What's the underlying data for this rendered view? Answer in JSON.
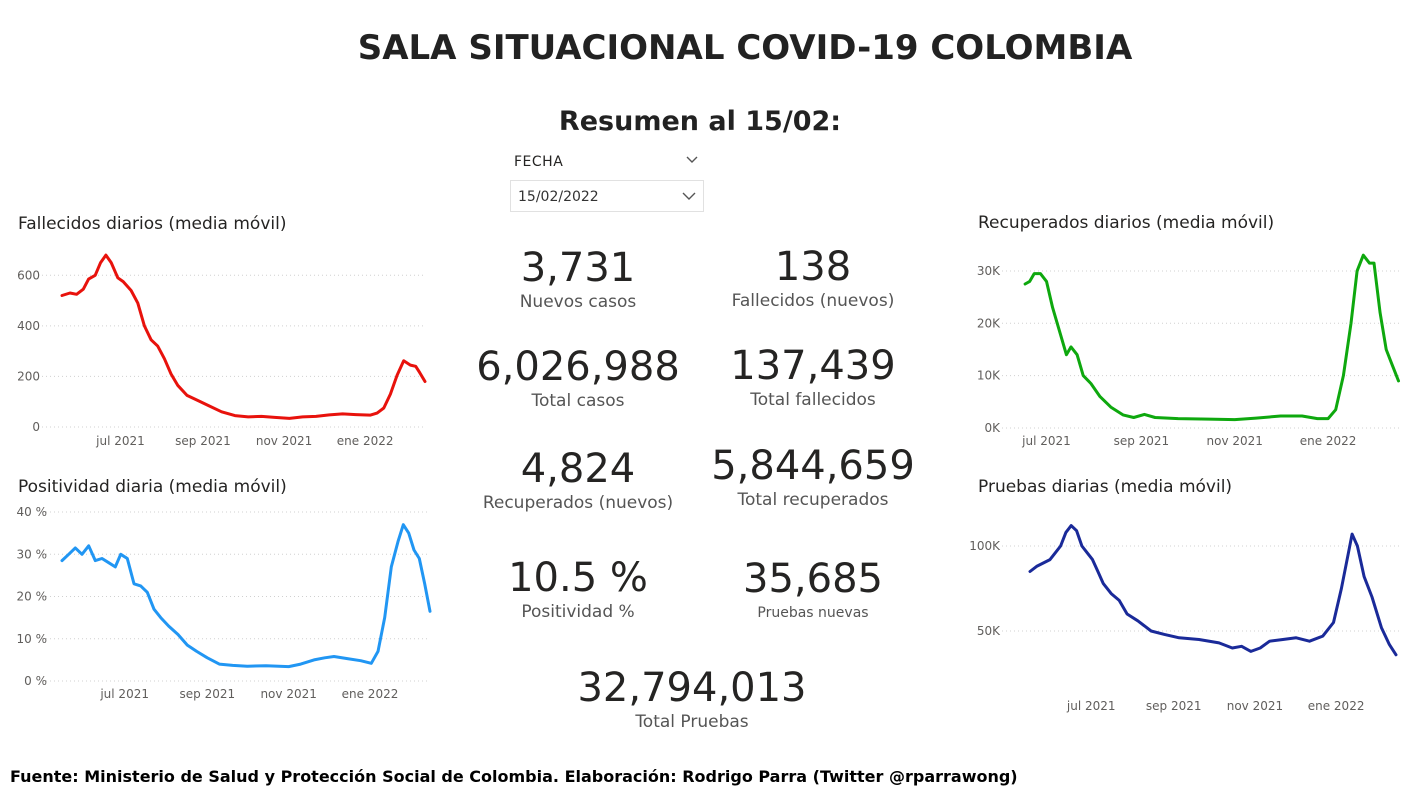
{
  "header": {
    "title": "SALA SITUACIONAL COVID-19 COLOMBIA",
    "subtitle": "Resumen al 15/02:"
  },
  "slicer": {
    "label": "FECHA",
    "value": "15/02/2022"
  },
  "kpis": {
    "nuevos_casos": {
      "value": "3,731",
      "label": "Nuevos casos"
    },
    "fallecidos_nuevos": {
      "value": "138",
      "label": "Fallecidos (nuevos)"
    },
    "total_casos": {
      "value": "6,026,988",
      "label": "Total casos"
    },
    "total_fallecidos": {
      "value": "137,439",
      "label": "Total fallecidos"
    },
    "recuperados_nuevos": {
      "value": "4,824",
      "label": "Recuperados (nuevos)"
    },
    "total_recuperados": {
      "value": "5,844,659",
      "label": "Total recuperados"
    },
    "positividad": {
      "value": "10.5 %",
      "label": "Positividad %"
    },
    "pruebas_nuevas": {
      "value": "35,685",
      "label": "Pruebas nuevas"
    },
    "total_pruebas": {
      "value": "32,794,013",
      "label": "Total Pruebas"
    }
  },
  "footer": "Fuente: Ministerio de Salud y Protección Social de Colombia. Elaboración: Rodrigo Parra (Twitter @rparrawong)",
  "chart_data": [
    {
      "id": "fallecidos",
      "type": "line",
      "title": "Fallecidos diarios (media móvil)",
      "color": "#e8120c",
      "x_range": [
        "2021-05-18",
        "2022-02-15"
      ],
      "xticks": [
        {
          "date": "2021-07-01",
          "label": "jul 2021"
        },
        {
          "date": "2021-09-01",
          "label": "sep 2021"
        },
        {
          "date": "2021-11-01",
          "label": "nov 2021"
        },
        {
          "date": "2022-01-01",
          "label": "ene 2022"
        }
      ],
      "ylim": [
        0,
        700
      ],
      "yticks": [
        {
          "value": 0,
          "label": "0"
        },
        {
          "value": 200,
          "label": "200"
        },
        {
          "value": 400,
          "label": "400"
        },
        {
          "value": 600,
          "label": "600"
        }
      ],
      "points": [
        [
          "2021-05-18",
          520
        ],
        [
          "2021-05-24",
          530
        ],
        [
          "2021-05-29",
          525
        ],
        [
          "2021-06-03",
          545
        ],
        [
          "2021-06-07",
          585
        ],
        [
          "2021-06-12",
          600
        ],
        [
          "2021-06-16",
          650
        ],
        [
          "2021-06-20",
          680
        ],
        [
          "2021-06-24",
          650
        ],
        [
          "2021-06-29",
          590
        ],
        [
          "2021-07-03",
          575
        ],
        [
          "2021-07-09",
          540
        ],
        [
          "2021-07-14",
          490
        ],
        [
          "2021-07-19",
          400
        ],
        [
          "2021-07-24",
          345
        ],
        [
          "2021-07-29",
          320
        ],
        [
          "2021-08-03",
          270
        ],
        [
          "2021-08-08",
          210
        ],
        [
          "2021-08-13",
          165
        ],
        [
          "2021-08-20",
          125
        ],
        [
          "2021-08-28",
          105
        ],
        [
          "2021-09-05",
          85
        ],
        [
          "2021-09-15",
          60
        ],
        [
          "2021-09-25",
          45
        ],
        [
          "2021-10-05",
          40
        ],
        [
          "2021-10-15",
          42
        ],
        [
          "2021-10-25",
          38
        ],
        [
          "2021-11-05",
          34
        ],
        [
          "2021-11-15",
          40
        ],
        [
          "2021-11-25",
          42
        ],
        [
          "2021-12-05",
          48
        ],
        [
          "2021-12-15",
          52
        ],
        [
          "2021-12-25",
          49
        ],
        [
          "2022-01-05",
          47
        ],
        [
          "2022-01-10",
          55
        ],
        [
          "2022-01-15",
          75
        ],
        [
          "2022-01-20",
          130
        ],
        [
          "2022-01-25",
          205
        ],
        [
          "2022-01-30",
          262
        ],
        [
          "2022-02-04",
          245
        ],
        [
          "2022-02-08",
          240
        ],
        [
          "2022-02-11",
          215
        ],
        [
          "2022-02-15",
          180
        ]
      ]
    },
    {
      "id": "positividad",
      "type": "line",
      "title": "Positividad diaria (media móvil)",
      "color": "#2196f3",
      "x_range": [
        "2021-05-15",
        "2022-02-15"
      ],
      "xticks": [
        {
          "date": "2021-07-01",
          "label": "jul 2021"
        },
        {
          "date": "2021-09-01",
          "label": "sep 2021"
        },
        {
          "date": "2021-11-01",
          "label": "nov 2021"
        },
        {
          "date": "2022-01-01",
          "label": "ene 2022"
        }
      ],
      "ylim": [
        0,
        40
      ],
      "yticks": [
        {
          "value": 0,
          "label": "0 %"
        },
        {
          "value": 10,
          "label": "10 %"
        },
        {
          "value": 20,
          "label": "20 %"
        },
        {
          "value": 30,
          "label": "30 %"
        },
        {
          "value": 40,
          "label": "40 %"
        }
      ],
      "points": [
        [
          "2021-05-15",
          28.5
        ],
        [
          "2021-05-20",
          30
        ],
        [
          "2021-05-25",
          31.5
        ],
        [
          "2021-05-30",
          30
        ],
        [
          "2021-06-04",
          32
        ],
        [
          "2021-06-09",
          28.5
        ],
        [
          "2021-06-14",
          29
        ],
        [
          "2021-06-19",
          28
        ],
        [
          "2021-06-24",
          27
        ],
        [
          "2021-06-28",
          30
        ],
        [
          "2021-07-03",
          29
        ],
        [
          "2021-07-08",
          23
        ],
        [
          "2021-07-13",
          22.5
        ],
        [
          "2021-07-18",
          21
        ],
        [
          "2021-07-23",
          17
        ],
        [
          "2021-07-28",
          15
        ],
        [
          "2021-08-03",
          13
        ],
        [
          "2021-08-10",
          11
        ],
        [
          "2021-08-17",
          8.5
        ],
        [
          "2021-08-24",
          7
        ],
        [
          "2021-09-01",
          5.5
        ],
        [
          "2021-09-10",
          4
        ],
        [
          "2021-09-20",
          3.7
        ],
        [
          "2021-10-01",
          3.5
        ],
        [
          "2021-10-15",
          3.6
        ],
        [
          "2021-11-01",
          3.4
        ],
        [
          "2021-11-10",
          4
        ],
        [
          "2021-11-20",
          5
        ],
        [
          "2021-11-28",
          5.5
        ],
        [
          "2021-12-05",
          5.8
        ],
        [
          "2021-12-15",
          5.3
        ],
        [
          "2021-12-25",
          4.8
        ],
        [
          "2022-01-02",
          4.2
        ],
        [
          "2022-01-07",
          7
        ],
        [
          "2022-01-12",
          15
        ],
        [
          "2022-01-17",
          27
        ],
        [
          "2022-01-22",
          33
        ],
        [
          "2022-01-26",
          37
        ],
        [
          "2022-01-30",
          35
        ],
        [
          "2022-02-03",
          31
        ],
        [
          "2022-02-07",
          29
        ],
        [
          "2022-02-11",
          23
        ],
        [
          "2022-02-15",
          16.5
        ]
      ]
    },
    {
      "id": "recuperados",
      "type": "line",
      "title": "Recuperados diarios (media móvil)",
      "color": "#0ea80e",
      "x_range": [
        "2021-06-15",
        "2022-02-17"
      ],
      "xticks": [
        {
          "date": "2021-07-01",
          "label": "jul 2021"
        },
        {
          "date": "2021-09-01",
          "label": "sep 2021"
        },
        {
          "date": "2021-11-01",
          "label": "nov 2021"
        },
        {
          "date": "2022-01-01",
          "label": "ene 2022"
        }
      ],
      "ylim": [
        0,
        34000
      ],
      "yticks": [
        {
          "value": 0,
          "label": "0K"
        },
        {
          "value": 10000,
          "label": "10K"
        },
        {
          "value": 20000,
          "label": "20K"
        },
        {
          "value": 30000,
          "label": "30K"
        }
      ],
      "points": [
        [
          "2021-06-17",
          27500
        ],
        [
          "2021-06-20",
          28000
        ],
        [
          "2021-06-23",
          29500
        ],
        [
          "2021-06-27",
          29500
        ],
        [
          "2021-07-01",
          28000
        ],
        [
          "2021-07-05",
          23000
        ],
        [
          "2021-07-10",
          18000
        ],
        [
          "2021-07-14",
          14000
        ],
        [
          "2021-07-17",
          15500
        ],
        [
          "2021-07-21",
          14000
        ],
        [
          "2021-07-25",
          10000
        ],
        [
          "2021-07-30",
          8500
        ],
        [
          "2021-08-05",
          6000
        ],
        [
          "2021-08-12",
          4000
        ],
        [
          "2021-08-20",
          2500
        ],
        [
          "2021-08-27",
          2000
        ],
        [
          "2021-09-03",
          2600
        ],
        [
          "2021-09-10",
          2000
        ],
        [
          "2021-09-25",
          1800
        ],
        [
          "2021-10-15",
          1700
        ],
        [
          "2021-11-01",
          1600
        ],
        [
          "2021-11-15",
          1900
        ],
        [
          "2021-12-01",
          2300
        ],
        [
          "2021-12-15",
          2300
        ],
        [
          "2021-12-25",
          1800
        ],
        [
          "2022-01-01",
          1800
        ],
        [
          "2022-01-06",
          3500
        ],
        [
          "2022-01-11",
          10000
        ],
        [
          "2022-01-16",
          20000
        ],
        [
          "2022-01-20",
          30000
        ],
        [
          "2022-01-24",
          33000
        ],
        [
          "2022-01-28",
          31500
        ],
        [
          "2022-01-31",
          31500
        ],
        [
          "2022-02-04",
          22000
        ],
        [
          "2022-02-08",
          15000
        ],
        [
          "2022-02-12",
          12000
        ],
        [
          "2022-02-16",
          9000
        ]
      ]
    },
    {
      "id": "pruebas",
      "type": "line",
      "title": "Pruebas diarias (media móvil)",
      "color": "#1a2a99",
      "x_range": [
        "2021-05-10",
        "2022-02-18"
      ],
      "xticks": [
        {
          "date": "2021-07-01",
          "label": "jul 2021"
        },
        {
          "date": "2021-09-01",
          "label": "sep 2021"
        },
        {
          "date": "2021-11-01",
          "label": "nov 2021"
        },
        {
          "date": "2022-01-01",
          "label": "ene 2022"
        }
      ],
      "ylim": [
        30000,
        120000
      ],
      "yticks": [
        {
          "value": 50000,
          "label": "50K"
        },
        {
          "value": 100000,
          "label": "100K"
        }
      ],
      "points": [
        [
          "2021-05-16",
          85000
        ],
        [
          "2021-05-21",
          88000
        ],
        [
          "2021-05-26",
          90000
        ],
        [
          "2021-05-31",
          92000
        ],
        [
          "2021-06-04",
          96000
        ],
        [
          "2021-06-08",
          100000
        ],
        [
          "2021-06-12",
          108000
        ],
        [
          "2021-06-16",
          112000
        ],
        [
          "2021-06-20",
          109000
        ],
        [
          "2021-06-24",
          100000
        ],
        [
          "2021-06-28",
          96000
        ],
        [
          "2021-07-02",
          92000
        ],
        [
          "2021-07-06",
          85000
        ],
        [
          "2021-07-10",
          78000
        ],
        [
          "2021-07-16",
          72000
        ],
        [
          "2021-07-22",
          68000
        ],
        [
          "2021-07-28",
          60000
        ],
        [
          "2021-08-05",
          56000
        ],
        [
          "2021-08-15",
          50000
        ],
        [
          "2021-08-25",
          48000
        ],
        [
          "2021-09-05",
          46000
        ],
        [
          "2021-09-20",
          45000
        ],
        [
          "2021-10-05",
          43000
        ],
        [
          "2021-10-15",
          40000
        ],
        [
          "2021-10-22",
          41000
        ],
        [
          "2021-10-29",
          38000
        ],
        [
          "2021-11-05",
          40000
        ],
        [
          "2021-11-12",
          44000
        ],
        [
          "2021-11-22",
          45000
        ],
        [
          "2021-12-02",
          46000
        ],
        [
          "2021-12-12",
          44000
        ],
        [
          "2021-12-22",
          47000
        ],
        [
          "2021-12-30",
          55000
        ],
        [
          "2022-01-05",
          75000
        ],
        [
          "2022-01-10",
          95000
        ],
        [
          "2022-01-13",
          107000
        ],
        [
          "2022-01-17",
          100000
        ],
        [
          "2022-01-22",
          82000
        ],
        [
          "2022-01-28",
          70000
        ],
        [
          "2022-02-04",
          52000
        ],
        [
          "2022-02-10",
          42000
        ],
        [
          "2022-02-15",
          36000
        ]
      ]
    }
  ]
}
